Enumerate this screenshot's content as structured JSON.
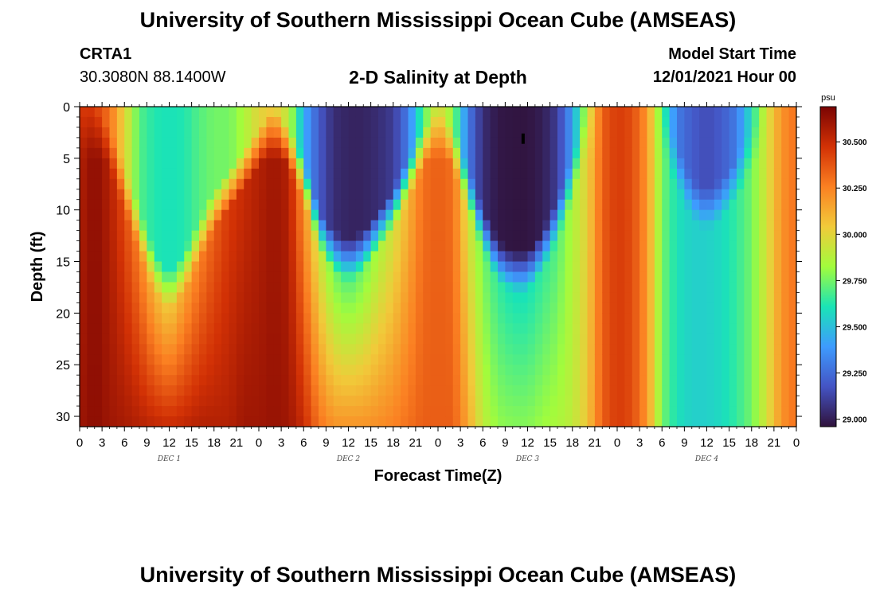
{
  "page": {
    "title_top": "University of Southern Mississippi Ocean Cube (AMSEAS)",
    "title_bottom": "University of Southern Mississippi Ocean Cube (AMSEAS)"
  },
  "header": {
    "station": "CRTA1",
    "coords": "30.3080N  88.1400W",
    "chart_title": "2-D Salinity at Depth",
    "model_label": "Model Start Time",
    "model_date": "12/01/2021 Hour 00"
  },
  "chart_data": {
    "type": "heatmap",
    "title": "2-D Salinity at Depth",
    "xlabel": "Forecast Time(Z)",
    "ylabel": "Depth (ft)",
    "x_unit": "hours since 12/01/2021 00Z",
    "xlim": [
      0,
      96
    ],
    "ylim": [
      0,
      31
    ],
    "x_tick_labels": [
      "0",
      "3",
      "6",
      "9",
      "12",
      "15",
      "18",
      "21",
      "0",
      "3",
      "6",
      "9",
      "12",
      "15",
      "18",
      "21",
      "0",
      "3",
      "6",
      "9",
      "12",
      "15",
      "18",
      "21",
      "0",
      "3",
      "6",
      "9",
      "12",
      "15",
      "18",
      "21",
      "0"
    ],
    "y_ticks": [
      0,
      5,
      10,
      15,
      20,
      25,
      30
    ],
    "day_labels": [
      {
        "label": "DEC 1",
        "hour": 12
      },
      {
        "label": "DEC 2",
        "hour": 36
      },
      {
        "label": "DEC 3",
        "hour": 60
      },
      {
        "label": "DEC 4",
        "hour": 84
      }
    ],
    "colorbar": {
      "unit": "psu",
      "min": 28.96,
      "max": 30.69,
      "ticks": [
        "29.000",
        "29.250",
        "29.500",
        "29.750",
        "30.000",
        "30.250",
        "30.500"
      ],
      "colors": [
        "#30123b",
        "#4454c4",
        "#3e9bfe",
        "#1ae4b6",
        "#a2fc3c",
        "#f1ca3a",
        "#fb8022",
        "#d23105",
        "#7a0403"
      ]
    },
    "columns": [
      {
        "h": 0,
        "s": 30.45,
        "m": 30.55,
        "b": 30.6,
        "dep": 0
      },
      {
        "h": 2,
        "s": 30.45,
        "m": 30.65,
        "b": 30.65,
        "dep": 0
      },
      {
        "h": 4,
        "s": 30.3,
        "m": 30.55,
        "b": 30.6,
        "dep": 2
      },
      {
        "h": 6,
        "s": 30.0,
        "m": 30.4,
        "b": 30.58,
        "dep": 6
      },
      {
        "h": 8,
        "s": 29.7,
        "m": 30.25,
        "b": 30.55,
        "dep": 10
      },
      {
        "h": 10,
        "s": 29.62,
        "m": 30.1,
        "b": 30.52,
        "dep": 14
      },
      {
        "h": 12,
        "s": 29.6,
        "m": 30.05,
        "b": 30.5,
        "dep": 16
      },
      {
        "h": 14,
        "s": 29.62,
        "m": 30.15,
        "b": 30.52,
        "dep": 14
      },
      {
        "h": 16,
        "s": 29.7,
        "m": 30.25,
        "b": 30.55,
        "dep": 11
      },
      {
        "h": 18,
        "s": 29.75,
        "m": 30.35,
        "b": 30.55,
        "dep": 8
      },
      {
        "h": 20,
        "s": 29.75,
        "m": 30.45,
        "b": 30.55,
        "dep": 6
      },
      {
        "h": 22,
        "s": 29.85,
        "m": 30.5,
        "b": 30.6,
        "dep": 4
      },
      {
        "h": 24,
        "s": 30.0,
        "m": 30.55,
        "b": 30.6,
        "dep": 2
      },
      {
        "h": 26,
        "s": 30.05,
        "m": 30.6,
        "b": 30.62,
        "dep": 0
      },
      {
        "h": 28,
        "s": 29.9,
        "m": 30.55,
        "b": 30.6,
        "dep": 2
      },
      {
        "h": 30,
        "s": 29.45,
        "m": 30.2,
        "b": 30.5,
        "dep": 5
      },
      {
        "h": 32,
        "s": 29.2,
        "m": 29.95,
        "b": 30.3,
        "dep": 10
      },
      {
        "h": 34,
        "s": 29.05,
        "m": 29.75,
        "b": 30.2,
        "dep": 12
      },
      {
        "h": 36,
        "s": 29.02,
        "m": 29.7,
        "b": 30.2,
        "dep": 13
      },
      {
        "h": 38,
        "s": 29.02,
        "m": 29.75,
        "b": 30.2,
        "dep": 12
      },
      {
        "h": 40,
        "s": 29.05,
        "m": 29.85,
        "b": 30.22,
        "dep": 10
      },
      {
        "h": 42,
        "s": 29.1,
        "m": 29.95,
        "b": 30.25,
        "dep": 8
      },
      {
        "h": 44,
        "s": 29.3,
        "m": 30.1,
        "b": 30.3,
        "dep": 5
      },
      {
        "h": 46,
        "s": 29.7,
        "m": 30.3,
        "b": 30.35,
        "dep": 2
      },
      {
        "h": 48,
        "s": 30.0,
        "m": 30.35,
        "b": 30.35,
        "dep": 0
      },
      {
        "h": 50,
        "s": 29.8,
        "m": 30.3,
        "b": 30.35,
        "dep": 2
      },
      {
        "h": 52,
        "s": 29.3,
        "m": 29.95,
        "b": 30.15,
        "dep": 6
      },
      {
        "h": 54,
        "s": 29.05,
        "m": 29.75,
        "b": 29.9,
        "dep": 10
      },
      {
        "h": 56,
        "s": 28.98,
        "m": 29.65,
        "b": 29.8,
        "dep": 13
      },
      {
        "h": 58,
        "s": 28.97,
        "m": 29.6,
        "b": 29.78,
        "dep": 14
      },
      {
        "h": 60,
        "s": 28.97,
        "m": 29.6,
        "b": 29.78,
        "dep": 14
      },
      {
        "h": 62,
        "s": 29.0,
        "m": 29.65,
        "b": 29.82,
        "dep": 12
      },
      {
        "h": 64,
        "s": 29.1,
        "m": 29.7,
        "b": 29.85,
        "dep": 9
      },
      {
        "h": 66,
        "s": 29.4,
        "m": 29.85,
        "b": 29.9,
        "dep": 5
      },
      {
        "h": 68,
        "s": 29.9,
        "m": 30.0,
        "b": 30.05,
        "dep": 0
      },
      {
        "h": 70,
        "s": 30.35,
        "m": 30.35,
        "b": 30.35,
        "dep": 0
      },
      {
        "h": 72,
        "s": 30.45,
        "m": 30.45,
        "b": 30.45,
        "dep": 0
      },
      {
        "h": 74,
        "s": 30.4,
        "m": 30.4,
        "b": 30.4,
        "dep": 0
      },
      {
        "h": 76,
        "s": 30.2,
        "m": 30.2,
        "b": 30.2,
        "dep": 0
      },
      {
        "h": 78,
        "s": 29.7,
        "m": 29.75,
        "b": 29.75,
        "dep": 0
      },
      {
        "h": 80,
        "s": 29.3,
        "m": 29.6,
        "b": 29.6,
        "dep": 4
      },
      {
        "h": 82,
        "s": 29.2,
        "m": 29.55,
        "b": 29.55,
        "dep": 7
      },
      {
        "h": 84,
        "s": 29.15,
        "m": 29.55,
        "b": 29.55,
        "dep": 8
      },
      {
        "h": 86,
        "s": 29.2,
        "m": 29.58,
        "b": 29.58,
        "dep": 7
      },
      {
        "h": 88,
        "s": 29.3,
        "m": 29.65,
        "b": 29.65,
        "dep": 5
      },
      {
        "h": 90,
        "s": 29.6,
        "m": 29.75,
        "b": 29.75,
        "dep": 2
      },
      {
        "h": 92,
        "s": 29.95,
        "m": 29.95,
        "b": 29.95,
        "dep": 0
      },
      {
        "h": 94,
        "s": 30.2,
        "m": 30.2,
        "b": 30.2,
        "dep": 0
      },
      {
        "h": 96,
        "s": 30.3,
        "m": 30.3,
        "b": 30.3,
        "dep": 0
      }
    ]
  }
}
